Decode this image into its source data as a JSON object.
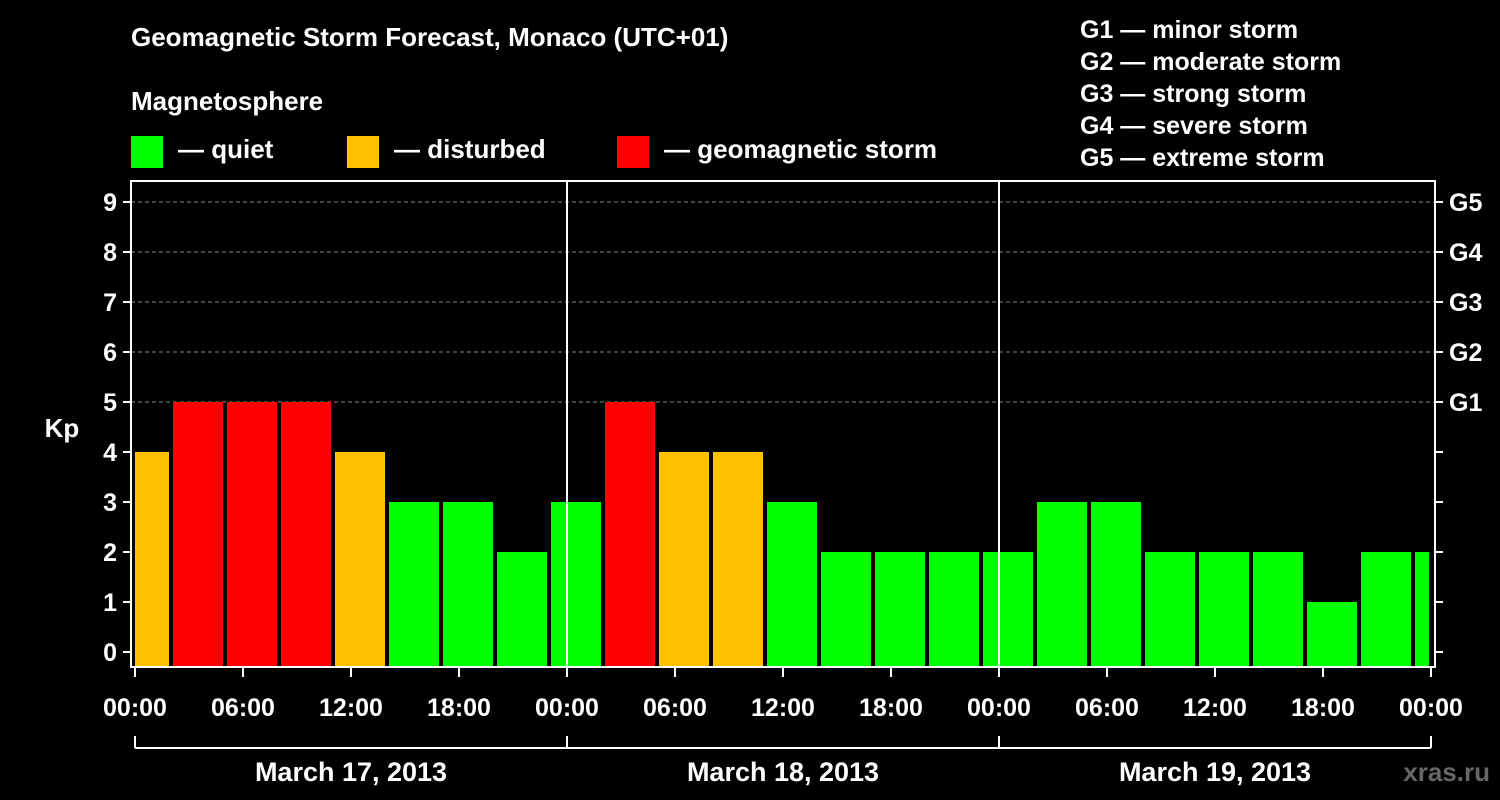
{
  "title": "Geomagnetic Storm Forecast, Monaco (UTC+01)",
  "magnetosphere_label": "Magnetosphere",
  "legend": [
    {
      "label": "— quiet",
      "color": "#00ff00"
    },
    {
      "label": "— disturbed",
      "color": "#ffc000"
    },
    {
      "label": "— geomagnetic storm",
      "color": "#ff0000"
    }
  ],
  "g_scale_legend": [
    "G1 — minor storm",
    "G2 — moderate storm",
    "G3 — strong storm",
    "G4 — severe storm",
    "G5 — extreme storm"
  ],
  "watermark": "xras.ru",
  "chart_data": {
    "type": "bar",
    "ylabel": "Kp",
    "ylim": [
      0,
      9
    ],
    "yticks": [
      0,
      1,
      2,
      3,
      4,
      5,
      6,
      7,
      8,
      9
    ],
    "right_axis_labels": [
      {
        "kp": 5,
        "label": "G1"
      },
      {
        "kp": 6,
        "label": "G2"
      },
      {
        "kp": 7,
        "label": "G3"
      },
      {
        "kp": 8,
        "label": "G4"
      },
      {
        "kp": 9,
        "label": "G5"
      }
    ],
    "grid": "horizontal dashed lines at Kp 5-9",
    "bar_interval_hours": 3,
    "first_bar_start_offset_hours": -1,
    "x_tick_labels": [
      "00:00",
      "06:00",
      "12:00",
      "18:00",
      "00:00",
      "06:00",
      "12:00",
      "18:00",
      "00:00",
      "06:00",
      "12:00",
      "18:00",
      "00:00"
    ],
    "days": [
      "March 17, 2013",
      "March 18, 2013",
      "March 19, 2013"
    ],
    "values": [
      4,
      5,
      5,
      5,
      4,
      3,
      3,
      2,
      3,
      5,
      4,
      4,
      3,
      2,
      2,
      2,
      2,
      3,
      3,
      2,
      2,
      2,
      1,
      2,
      2
    ],
    "colors": {
      "quiet": "#00ff00",
      "disturbed": "#ffc000",
      "storm": "#ff0000"
    },
    "color_rule": "Kp<=3 quiet, Kp=4 disturbed, Kp>=5 storm"
  }
}
